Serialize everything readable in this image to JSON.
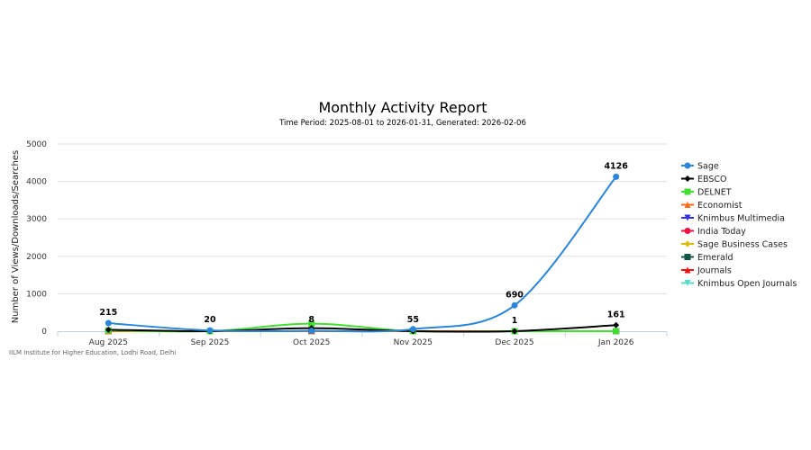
{
  "chart_data": {
    "type": "line",
    "title": "Monthly Activity Report",
    "subtitle": "Time Period: 2025-08-01 to 2026-01-31, Generated: 2026-02-06",
    "ylabel": "Number of Views/Downloads/Searches",
    "xlabel": "",
    "credits": "IILM Institute for Higher Education, Lodhi Road, Delhi",
    "categories": [
      "Aug 2025",
      "Sep 2025",
      "Oct 2025",
      "Nov 2025",
      "Dec 2025",
      "Jan 2026"
    ],
    "ylim": [
      0,
      5000
    ],
    "yticks": [
      0,
      1000,
      2000,
      3000,
      4000,
      5000
    ],
    "grid": true,
    "legend": "right",
    "series": [
      {
        "name": "Sage",
        "color": "#2b86d9",
        "marker": "circle",
        "values": [
          215,
          20,
          8,
          55,
          690,
          4126
        ]
      },
      {
        "name": "EBSCO",
        "color": "#000000",
        "marker": "diamond",
        "values": [
          40,
          0,
          80,
          0,
          1,
          161
        ]
      },
      {
        "name": "DELNET",
        "color": "#44dd33",
        "marker": "square",
        "values": [
          20,
          0,
          200,
          0,
          0,
          0
        ]
      },
      {
        "name": "Economist",
        "color": "#ff6a1a",
        "marker": "triangle",
        "values": [
          0,
          0,
          0,
          0,
          0,
          0
        ]
      },
      {
        "name": "Knimbus Multimedia",
        "color": "#3333dd",
        "marker": "triangle-down",
        "values": [
          0,
          0,
          0,
          0,
          0,
          0
        ]
      },
      {
        "name": "India Today",
        "color": "#ee1144",
        "marker": "circle",
        "values": [
          0,
          0,
          0,
          0,
          0,
          0
        ]
      },
      {
        "name": "Sage Business Cases",
        "color": "#ddbb00",
        "marker": "diamond",
        "values": [
          0,
          0,
          0,
          0,
          0,
          0
        ]
      },
      {
        "name": "Emerald",
        "color": "#115544",
        "marker": "square",
        "values": [
          0,
          0,
          0,
          0,
          0,
          0
        ]
      },
      {
        "name": "Journals",
        "color": "#ee1111",
        "marker": "triangle",
        "values": [
          0,
          0,
          0,
          0,
          0,
          0
        ]
      },
      {
        "name": "Knimbus Open Journals",
        "color": "#55ddcc",
        "marker": "triangle-down",
        "values": [
          0,
          0,
          0,
          0,
          0,
          0
        ]
      }
    ],
    "data_labels": [
      {
        "category": "Aug 2025",
        "series": "Sage",
        "text": "215"
      },
      {
        "category": "Sep 2025",
        "series": "Sage",
        "text": "20"
      },
      {
        "category": "Oct 2025",
        "series": "Sage",
        "text": "8"
      },
      {
        "category": "Nov 2025",
        "series": "Sage",
        "text": "55"
      },
      {
        "category": "Dec 2025",
        "series": "Sage",
        "text": "690"
      },
      {
        "category": "Dec 2025",
        "series": "EBSCO",
        "text": "1"
      },
      {
        "category": "Jan 2026",
        "series": "Sage",
        "text": "4126"
      },
      {
        "category": "Jan 2026",
        "series": "EBSCO",
        "text": "161"
      }
    ]
  }
}
